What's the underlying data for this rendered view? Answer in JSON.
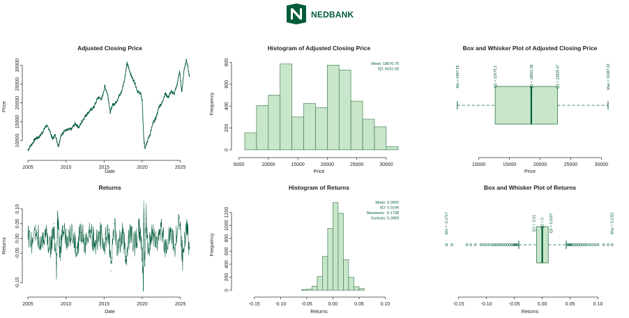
{
  "brand": {
    "name": "NEDBANK",
    "color": "#005c38",
    "fill": "#c8e6c9",
    "fill_stroke": "#2e6e43",
    "logo_icon": "nedbank-n-logo"
  },
  "chart_data": [
    {
      "id": "price-line",
      "type": "line",
      "title": "Adjusted Closing Price",
      "xlabel": "Date",
      "ylabel": "Price",
      "xlim": [
        2005,
        2026.5
      ],
      "ylim": [
        6200,
        31800
      ],
      "xticks": [
        2005,
        2010,
        2015,
        2020,
        2025
      ],
      "yticks": [
        10000,
        15000,
        20000,
        25000,
        30000
      ],
      "series": [
        {
          "x": [
            2005.0,
            2005.5,
            2006.0,
            2006.5,
            2007.0,
            2007.4,
            2007.8,
            2008.2,
            2008.6,
            2009.0,
            2009.3,
            2009.7,
            2010.2,
            2010.7,
            2011.2,
            2011.7,
            2012.2,
            2012.7,
            2013.2,
            2013.7,
            2014.2,
            2014.7,
            2015.1,
            2015.5,
            2015.8,
            2016.1,
            2016.5,
            2016.9,
            2017.3,
            2017.7,
            2018.0,
            2018.2,
            2018.6,
            2019.0,
            2019.4,
            2019.8,
            2020.0,
            2020.2,
            2020.35,
            2020.6,
            2021.0,
            2021.4,
            2021.8,
            2022.2,
            2022.6,
            2023.0,
            2023.4,
            2023.8,
            2024.2,
            2024.6,
            2024.9,
            2025.2,
            2025.5,
            2025.8,
            2026.2
          ],
          "y": [
            7500,
            9000,
            10500,
            11000,
            12500,
            14000,
            13000,
            10500,
            11500,
            8500,
            11000,
            12500,
            12800,
            13000,
            14500,
            13500,
            15500,
            17000,
            18000,
            19000,
            21500,
            21000,
            24500,
            22000,
            17500,
            19500,
            20000,
            21500,
            23000,
            26500,
            30500,
            29500,
            27000,
            25500,
            23000,
            22500,
            20500,
            10500,
            8000,
            9500,
            11500,
            14500,
            16000,
            19000,
            20000,
            22500,
            21500,
            23000,
            22500,
            25000,
            28500,
            23000,
            29000,
            31500,
            27000
          ]
        }
      ]
    },
    {
      "id": "price-histogram",
      "type": "bar",
      "title": "Histogram of Adjusted Closing Price",
      "xlabel": "Price",
      "ylabel": "Frequency",
      "xlim": [
        4700,
        32500
      ],
      "ylim": [
        -20,
        860
      ],
      "xticks": [
        5000,
        10000,
        15000,
        20000,
        25000,
        30000
      ],
      "yticks": [
        0,
        200,
        400,
        600,
        800
      ],
      "bin_edges": [
        6000,
        8000,
        10000,
        12000,
        14000,
        16000,
        18000,
        20000,
        22000,
        24000,
        26000,
        28000,
        30000,
        32000
      ],
      "values": [
        155,
        405,
        500,
        785,
        300,
        425,
        385,
        775,
        730,
        445,
        280,
        210,
        30
      ],
      "stats": [
        "Mean: 18676.75",
        "SD: 6031.65"
      ]
    },
    {
      "id": "price-box",
      "type": "box",
      "title": "Box and Whisker Plot of Adjusted Closing Price",
      "xlabel": "Price",
      "xlim": [
        4700,
        32000
      ],
      "xticks": [
        10000,
        15000,
        20000,
        25000,
        30000
      ],
      "min": 6497.55,
      "q1": 12675.2,
      "median": 18562.38,
      "q3": 22839.47,
      "max": 31087.22,
      "outliers": [],
      "labels": {
        "min": "Min = 6497.55",
        "q1": "Q1 = 12675.2",
        "median": "Q2 = 18562.38",
        "q3": "Q3 = 22839.47",
        "max": "Max = 31087.22"
      }
    },
    {
      "id": "returns-line",
      "type": "line",
      "title": "Returns",
      "xlabel": "Date",
      "ylabel": "Returns",
      "xlim": [
        2005,
        2026.5
      ],
      "ylim": [
        -0.18,
        0.13
      ],
      "xticks": [
        2005,
        2010,
        2015,
        2020,
        2025
      ],
      "yticks": [
        -0.15,
        -0.05,
        0.0,
        0.05,
        0.1
      ],
      "series": [
        {
          "x": [
            2005.0,
            2005.6,
            2006.2,
            2006.8,
            2007.4,
            2008.0,
            2008.4,
            2008.75,
            2008.9,
            2009.2,
            2009.6,
            2010.2,
            2010.8,
            2011.4,
            2012.0,
            2012.6,
            2013.2,
            2013.8,
            2014.4,
            2015.0,
            2015.6,
            2015.9,
            2016.3,
            2016.8,
            2017.4,
            2017.9,
            2018.4,
            2019.0,
            2019.6,
            2020.0,
            2020.15,
            2020.2,
            2020.3,
            2020.5,
            2020.8,
            2021.3,
            2021.9,
            2022.5,
            2023.1,
            2023.7,
            2024.3,
            2024.9,
            2025.3,
            2025.8,
            2026.2
          ],
          "y": [
            0.01,
            -0.015,
            0.02,
            -0.02,
            0.015,
            -0.03,
            0.05,
            -0.1,
            0.07,
            -0.06,
            0.04,
            -0.02,
            0.03,
            -0.03,
            0.02,
            -0.02,
            0.025,
            -0.025,
            0.02,
            -0.02,
            0.03,
            -0.11,
            0.05,
            -0.03,
            0.02,
            -0.06,
            0.03,
            -0.025,
            0.03,
            -0.04,
            -0.172,
            0.125,
            -0.09,
            0.08,
            -0.05,
            0.03,
            -0.03,
            0.04,
            -0.035,
            0.025,
            -0.02,
            0.07,
            -0.07,
            0.05,
            -0.03
          ]
        }
      ]
    },
    {
      "id": "returns-histogram",
      "type": "bar",
      "title": "Histogram of Returns",
      "xlabel": "Returns",
      "ylabel": "Frequency",
      "xlim": [
        -0.183,
        0.13
      ],
      "ylim": [
        -20,
        1420
      ],
      "xticks": [
        -0.15,
        -0.1,
        -0.05,
        0.0,
        0.05,
        0.1
      ],
      "yticks": [
        0,
        200,
        400,
        600,
        800,
        1000,
        1200
      ],
      "bin_edges": [
        -0.06,
        -0.05,
        -0.04,
        -0.03,
        -0.02,
        -0.01,
        0.0,
        0.01,
        0.02,
        0.03,
        0.04,
        0.05,
        0.06
      ],
      "values": [
        10,
        15,
        60,
        210,
        520,
        950,
        1350,
        1185,
        470,
        200,
        55,
        25
      ],
      "stats": [
        "Mean: 0.0002",
        "SD: 0.0199",
        "Skewness: -0.1738",
        "Kurtosis: 5.0959"
      ]
    },
    {
      "id": "returns-box",
      "type": "box",
      "title": "Box and Whisker Plot of Returns",
      "xlabel": "Returns",
      "xlim": [
        -0.172,
        0.128
      ],
      "xticks": [
        -0.15,
        -0.1,
        -0.05,
        0.0,
        0.05,
        0.1
      ],
      "min": -0.1717,
      "q1": -0.01,
      "median": 0,
      "q3": 0.0107,
      "max": 0.1251,
      "whisker_low": -0.042,
      "whisker_high": 0.043,
      "outliers": [
        -0.1717,
        -0.162,
        -0.135,
        -0.128,
        -0.12,
        -0.11,
        -0.105,
        -0.1,
        -0.095,
        -0.09,
        -0.086,
        -0.082,
        -0.078,
        -0.074,
        -0.07,
        -0.066,
        -0.062,
        -0.058,
        -0.055,
        -0.052,
        -0.05,
        -0.048,
        -0.046,
        -0.044,
        0.045,
        0.047,
        0.049,
        0.051,
        0.053,
        0.056,
        0.059,
        0.062,
        0.065,
        0.068,
        0.072,
        0.076,
        0.08,
        0.085,
        0.09,
        0.095,
        0.1,
        0.11,
        0.118,
        0.1251
      ],
      "labels": {
        "min": "Min = -0.1717",
        "q1": "Q1 = -0.01",
        "median": "Q2 = 0",
        "q3": "Q3 = 0.0107",
        "max": "Max = 0.1251"
      }
    }
  ]
}
